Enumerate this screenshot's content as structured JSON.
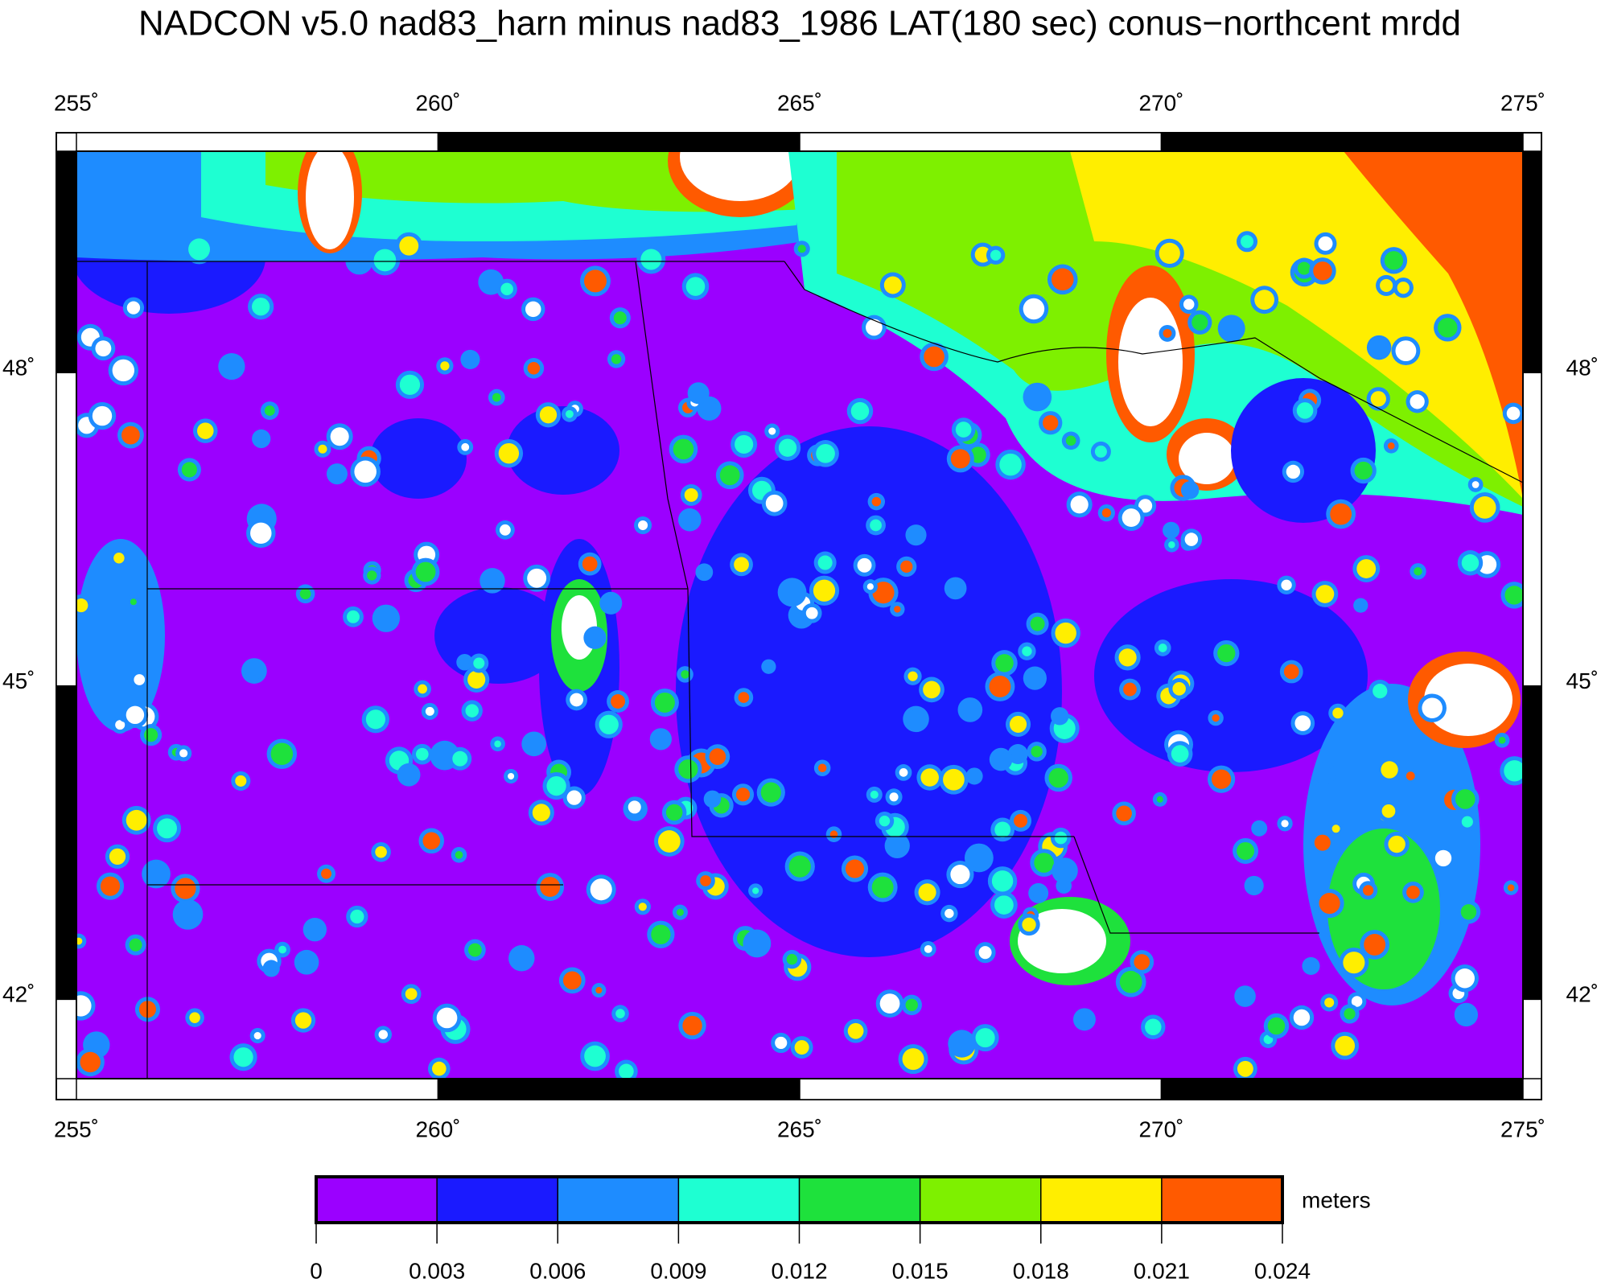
{
  "title": "NADCON v5.0 nad83_harn minus nad83_1986 LAT(180 sec) conus−northcent mrdd",
  "map": {
    "xlim": [
      255,
      275
    ],
    "xticks": [
      {
        "value": 255,
        "label": "255˚"
      },
      {
        "value": 260,
        "label": "260˚"
      },
      {
        "value": 265,
        "label": "265˚"
      },
      {
        "value": 270,
        "label": "270˚"
      },
      {
        "value": 275,
        "label": "275˚"
      }
    ],
    "ylim": [
      41.24,
      50.12
    ],
    "yticks": [
      {
        "value": 42,
        "label": "42˚"
      },
      {
        "value": 45,
        "label": "45˚"
      },
      {
        "value": 48,
        "label": "48˚"
      }
    ]
  },
  "colorbar": {
    "ticks": [
      0,
      0.003,
      0.006,
      0.009,
      0.012,
      0.015,
      0.018,
      0.021,
      0.024
    ],
    "colors": [
      "#9b00ff",
      "#1a1aff",
      "#1e8cff",
      "#1effd2",
      "#1ee13c",
      "#7ef000",
      "#ffee00",
      "#ff5a00"
    ],
    "unit": "meters"
  }
}
